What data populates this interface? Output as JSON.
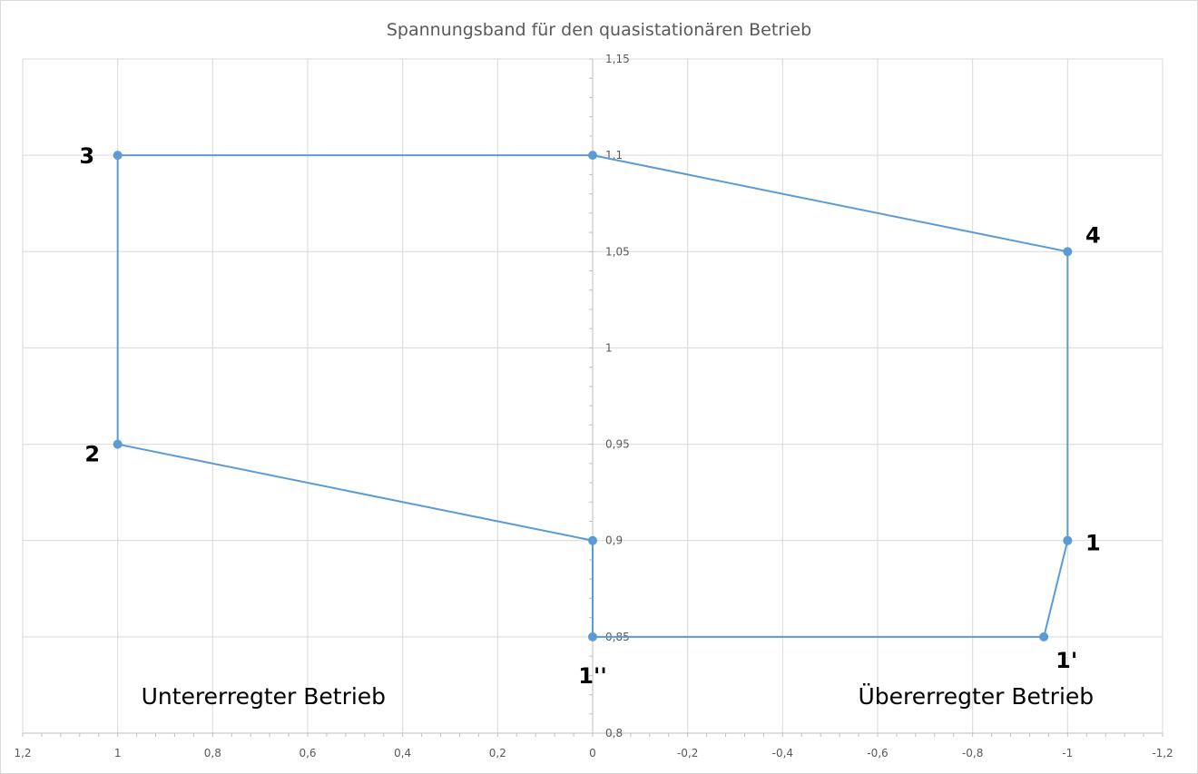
{
  "chart_data": {
    "type": "scatter",
    "title": "Spannungsband für den quasistationären Betrieb",
    "xlabel": "",
    "ylabel": "",
    "x_reversed": true,
    "xlim": [
      -1.2,
      1.2
    ],
    "ylim": [
      0.8,
      1.15
    ],
    "x_ticks": [
      1.2,
      1,
      0.8,
      0.6,
      0.4,
      0.2,
      0,
      -0.2,
      -0.4,
      -0.6,
      -0.8,
      -1,
      -1.2
    ],
    "x_tick_labels": [
      "1,2",
      "1",
      "0,8",
      "0,6",
      "0,4",
      "0,2",
      "0",
      "-0,2",
      "-0,4",
      "-0,6",
      "-0,8",
      "-1",
      "-1,2"
    ],
    "y_ticks": [
      0.8,
      0.85,
      0.9,
      0.95,
      1,
      1.05,
      1.1,
      1.15
    ],
    "y_tick_labels": [
      "0,8",
      "0,85",
      "0,9",
      "0,95",
      "1",
      "1,05",
      "1,1",
      "1,15"
    ],
    "grid": true,
    "legend": "none",
    "series": [
      {
        "color": "#5b9bd5",
        "points": [
          {
            "x": -1,
            "y": 0.9
          },
          {
            "x": -1,
            "y": 1.05
          },
          {
            "x": 0,
            "y": 1.1
          },
          {
            "x": 1,
            "y": 1.1
          },
          {
            "x": 1,
            "y": 0.95
          },
          {
            "x": 0,
            "y": 0.9
          },
          {
            "x": 0,
            "y": 0.85
          },
          {
            "x": -0.95,
            "y": 0.85
          },
          {
            "x": -1,
            "y": 0.9
          }
        ]
      }
    ],
    "point_labels": [
      {
        "text": "3",
        "x": 1,
        "y": 1.1,
        "anchor": "left"
      },
      {
        "text": "4",
        "x": -1,
        "y": 1.05,
        "anchor": "upper-right"
      },
      {
        "text": "2",
        "x": 1,
        "y": 0.95,
        "anchor": "lower-left"
      },
      {
        "text": "1",
        "x": -1,
        "y": 0.9,
        "anchor": "right"
      },
      {
        "text": "1'",
        "x": -0.95,
        "y": 0.85,
        "anchor": "below-right"
      },
      {
        "text": "1''",
        "x": 0,
        "y": 0.85,
        "anchor": "below-left"
      }
    ],
    "annotations": [
      {
        "text": "Untererregter Betrieb",
        "x": 0.8,
        "y": 0.81
      },
      {
        "text": "Übererregter Betrieb",
        "x": -0.7,
        "y": 0.81
      }
    ]
  }
}
